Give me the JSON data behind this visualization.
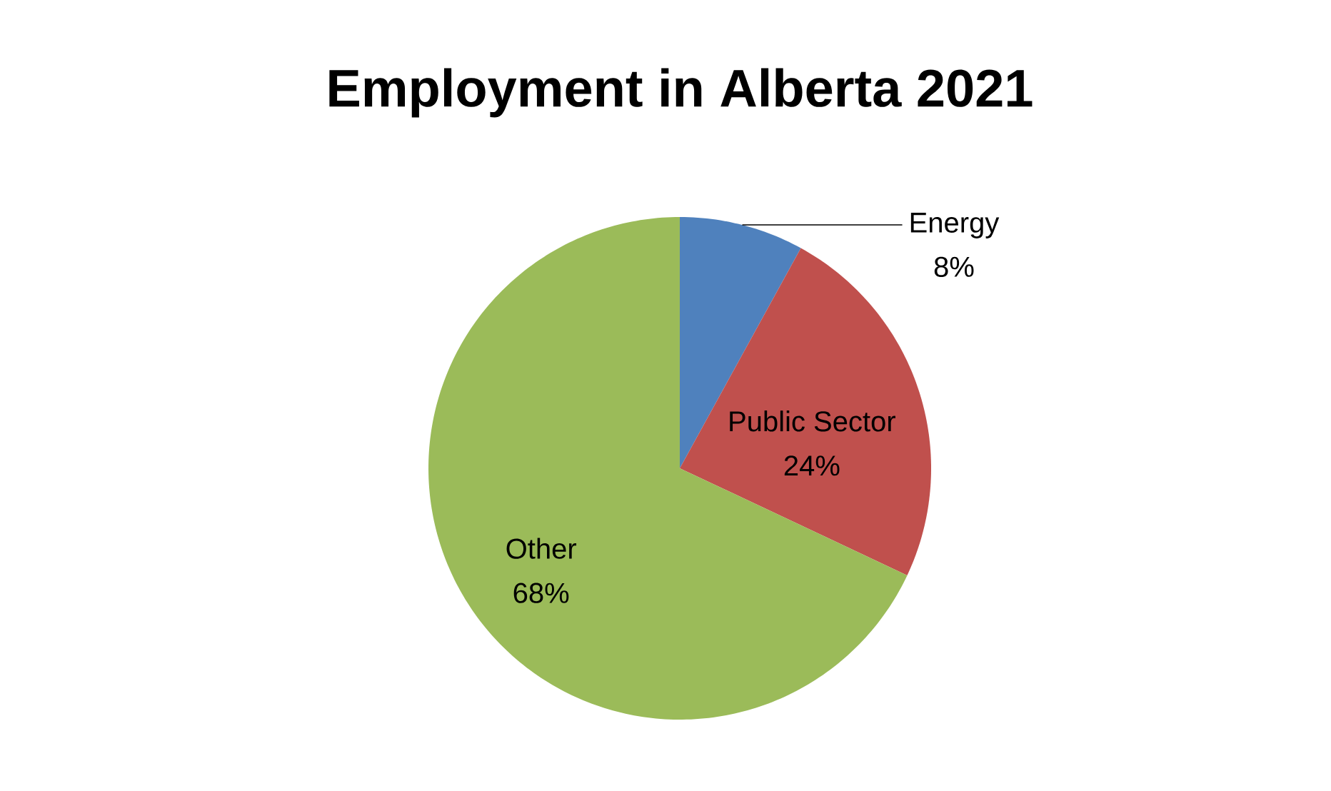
{
  "chart_data": {
    "type": "pie",
    "title": "Employment in Alberta 2021",
    "categories": [
      "Energy",
      "Public Sector",
      "Other"
    ],
    "values": [
      8,
      24,
      68
    ],
    "value_labels": [
      "8%",
      "24%",
      "68%"
    ],
    "colors": [
      "#4f81bd",
      "#c0504d",
      "#9bbb59"
    ]
  }
}
